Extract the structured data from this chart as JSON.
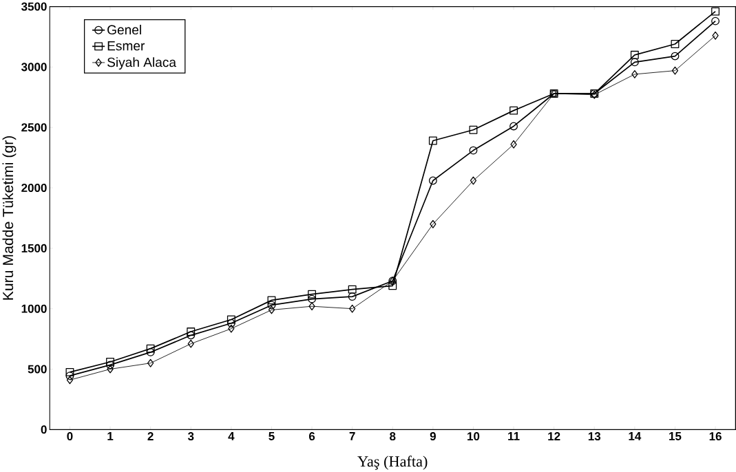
{
  "chart_data": {
    "type": "line",
    "xlabel": "Yaş (Hafta)",
    "ylabel": "Kuru Madde Tüketimi (gr)",
    "x": [
      0,
      1,
      2,
      3,
      4,
      5,
      6,
      7,
      8,
      9,
      10,
      11,
      12,
      13,
      14,
      15,
      16
    ],
    "xlim": [
      -0.5,
      16.5
    ],
    "xticks": [
      0,
      1,
      2,
      3,
      4,
      5,
      6,
      7,
      8,
      9,
      10,
      11,
      12,
      13,
      14,
      15,
      16
    ],
    "ylim": [
      0,
      3500
    ],
    "yticks": [
      0,
      500,
      1000,
      1500,
      2000,
      2500,
      3000,
      3500
    ],
    "legend": "top left",
    "grid": false,
    "line_style": "solid",
    "series": [
      {
        "name": "Genel",
        "color": "#000000",
        "marker": "circle",
        "values": [
          445,
          535,
          640,
          780,
          880,
          1030,
          1080,
          1100,
          1230,
          2060,
          2310,
          2510,
          2780,
          2780,
          3040,
          3090,
          3380
        ]
      },
      {
        "name": "Esmer",
        "color": "#000000",
        "marker": "square",
        "values": [
          475,
          560,
          670,
          810,
          910,
          1070,
          1120,
          1160,
          1190,
          2390,
          2480,
          2640,
          2780,
          2780,
          3100,
          3190,
          3460
        ]
      },
      {
        "name": "Siyah Alaca",
        "color": "#000000",
        "marker": "diamond",
        "values": [
          410,
          500,
          550,
          710,
          835,
          990,
          1020,
          1000,
          1230,
          1700,
          2060,
          2360,
          2780,
          2770,
          2940,
          2970,
          3260
        ]
      }
    ]
  }
}
